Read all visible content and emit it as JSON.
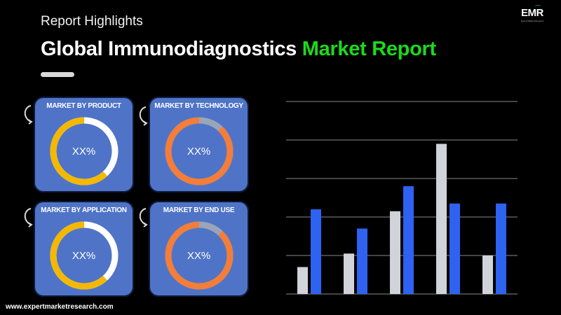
{
  "header": {
    "subtitle": "Report Highlights",
    "title_main": "Global Immunodiagnostics",
    "title_accent": "Market Report"
  },
  "logo": {
    "text": "EMR",
    "tagline": "Expert Market Research"
  },
  "footer": {
    "website": "www.expertmarketresearch.com"
  },
  "cards": [
    {
      "title": "MARKET BY PRODUCT",
      "value": "XX%",
      "ring_color": "#f5b800",
      "rest_color": "#ffffff",
      "ring_share": 0.62
    },
    {
      "title": "MARKET BY TECHNOLOGY",
      "value": "XX%",
      "ring_color": "#f47d3a",
      "rest_color": "#9aa5b8",
      "ring_share": 0.88
    },
    {
      "title": "MARKET BY APPLICATION",
      "value": "XX%",
      "ring_color": "#f5b800",
      "rest_color": "#ffffff",
      "ring_share": 0.62
    },
    {
      "title": "MARKET BY END USE",
      "value": "XX%",
      "ring_color": "#f47d3a",
      "rest_color": "#9aa5b8",
      "ring_share": 0.88
    }
  ],
  "colors": {
    "accent": "#1bdb1b",
    "card": "#4f74c7",
    "bar_gray": "#d0d3d9",
    "bar_blue": "#2e62f0",
    "grid": "#8a8a8a"
  },
  "chart_data": {
    "type": "bar",
    "categories": [
      "",
      "",
      "",
      "",
      ""
    ],
    "series": [
      {
        "values": [
          0.7,
          1.05,
          2.15,
          3.9,
          1.0
        ],
        "color": "#d0d3d9"
      },
      {
        "values": [
          2.2,
          1.7,
          2.8,
          2.35,
          2.35
        ],
        "color": "#2e62f0"
      }
    ],
    "ylim": [
      0,
      5
    ],
    "grid": true,
    "xlabel": "",
    "ylabel": ""
  }
}
